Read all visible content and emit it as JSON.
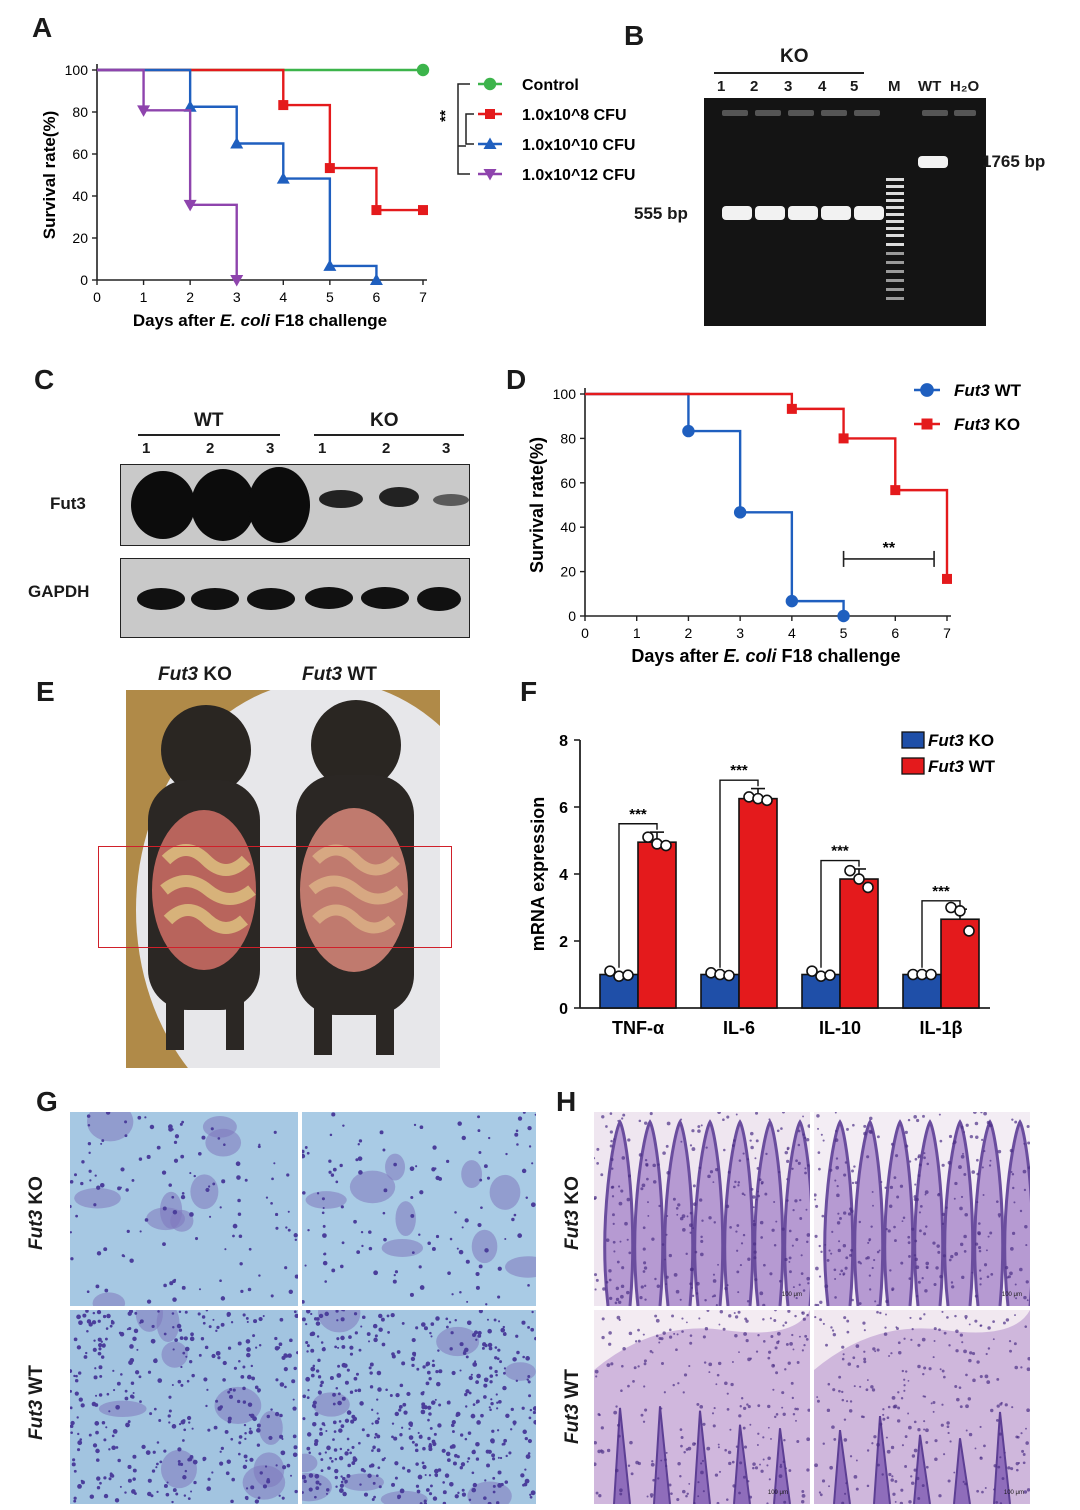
{
  "panels": {
    "a": {
      "letter": "A",
      "chart_data": {
        "type": "line",
        "xlabel_pre": "Days after ",
        "xlabel_italic": "E. coli",
        "xlabel_post": " F18 challenge",
        "ylabel": "Survival rate(%)",
        "xlim": [
          0,
          7
        ],
        "ylim": [
          0,
          100
        ],
        "xticks": [
          "0",
          "1",
          "2",
          "3",
          "4",
          "5",
          "6",
          "7"
        ],
        "yticks": [
          "0",
          "20",
          "40",
          "60",
          "80",
          "100"
        ],
        "significance": "**",
        "series": [
          {
            "name": "Control",
            "color": "#3cb44b",
            "marker": "circle",
            "x": [
              0,
              7
            ],
            "y": [
              100,
              100
            ],
            "points_x": [
              7
            ],
            "points_y": [
              100
            ]
          },
          {
            "name": "1.0x10^8 CFU",
            "color": "#e41a1c",
            "marker": "square",
            "x": [
              0,
              4,
              5,
              6,
              7
            ],
            "y": [
              100,
              83.3,
              53.3,
              33.3,
              33.3
            ],
            "points_x": [
              4,
              5,
              6,
              7
            ],
            "points_y": [
              83.3,
              53.3,
              33.3,
              33.3
            ]
          },
          {
            "name": "1.0x10^10 CFU",
            "color": "#1f5fbf",
            "marker": "triangle-up",
            "x": [
              0,
              2,
              3,
              4,
              5,
              6
            ],
            "y": [
              100,
              82.5,
              65,
              48.3,
              6.7,
              0
            ],
            "points_x": [
              2,
              3,
              4,
              5,
              6
            ],
            "points_y": [
              82.5,
              65,
              48.3,
              6.7,
              0
            ]
          },
          {
            "name": "1.0x10^12 CFU",
            "color": "#8e44ad",
            "marker": "triangle-down",
            "x": [
              0,
              1,
              2,
              3
            ],
            "y": [
              100,
              80.8,
              35.8,
              0
            ],
            "points_x": [
              1,
              2,
              3
            ],
            "points_y": [
              80.8,
              35.8,
              0
            ]
          }
        ]
      }
    },
    "b": {
      "letter": "B",
      "ko_label": "KO",
      "lanes": [
        "1",
        "2",
        "3",
        "4",
        "5",
        "M",
        "WT",
        "H₂O"
      ],
      "band_555": "555 bp",
      "band_1765": "1765 bp"
    },
    "c": {
      "letter": "C",
      "group_wt": "WT",
      "group_ko": "KO",
      "lanes": [
        "1",
        "2",
        "3",
        "1",
        "2",
        "3"
      ],
      "row1_label": "Fut3",
      "row2_label": "GAPDH"
    },
    "d": {
      "letter": "D",
      "chart_data": {
        "type": "line",
        "xlabel_pre": "Days after ",
        "xlabel_italic": "E. coli",
        "xlabel_post": " F18 challenge",
        "ylabel": "Survival rate(%)",
        "xlim": [
          0,
          7
        ],
        "ylim": [
          0,
          100
        ],
        "xticks": [
          "0",
          "1",
          "2",
          "3",
          "4",
          "5",
          "6",
          "7"
        ],
        "yticks": [
          "0",
          "20",
          "40",
          "60",
          "80",
          "100"
        ],
        "significance": "**",
        "series": [
          {
            "name_italic": "Fut3",
            "name_rest": " WT",
            "color": "#1f5fbf",
            "marker": "circle",
            "x": [
              0,
              2,
              3,
              4,
              5
            ],
            "y": [
              100,
              83.3,
              46.7,
              6.7,
              0
            ],
            "points_x": [
              2,
              3,
              4,
              5
            ],
            "points_y": [
              83.3,
              46.7,
              6.7,
              0
            ]
          },
          {
            "name_italic": "Fut3",
            "name_rest": " KO",
            "color": "#e41a1c",
            "marker": "square",
            "x": [
              0,
              4,
              5,
              6,
              7
            ],
            "y": [
              100,
              93.3,
              80,
              56.7,
              16.7
            ],
            "points_x": [
              4,
              5,
              6,
              7
            ],
            "points_y": [
              93.3,
              80,
              56.7,
              16.7
            ]
          }
        ]
      }
    },
    "e": {
      "letter": "E",
      "label_ko_italic": "Fut3",
      "label_ko_rest": " KO",
      "label_wt_italic": "Fut3",
      "label_wt_rest": " WT"
    },
    "f": {
      "letter": "F",
      "chart_data": {
        "type": "bar",
        "ylabel": "mRNA expression",
        "ylim": [
          0,
          8
        ],
        "yticks": [
          "0",
          "2",
          "4",
          "6",
          "8"
        ],
        "categories": [
          "TNF-α",
          "IL-6",
          "IL-10",
          "IL-1β"
        ],
        "significance": [
          "***",
          "***",
          "***",
          "***"
        ],
        "series": [
          {
            "name_italic": "Fut3",
            "name_rest": " KO",
            "color": "#1f4fa8",
            "values": [
              1.0,
              1.0,
              1.0,
              1.0
            ],
            "points": [
              [
                1.1,
                0.95,
                0.98
              ],
              [
                1.05,
                1.0,
                0.97
              ],
              [
                1.1,
                0.95,
                0.98
              ],
              [
                1.0,
                1.0,
                1.0
              ]
            ]
          },
          {
            "name_italic": "Fut3",
            "name_rest": " WT",
            "color": "#e41a1c",
            "values": [
              4.95,
              6.25,
              3.85,
              2.65
            ],
            "points": [
              [
                5.1,
                4.9,
                4.85
              ],
              [
                6.3,
                6.25,
                6.2
              ],
              [
                4.1,
                3.85,
                3.6
              ],
              [
                3.0,
                2.9,
                2.3
              ]
            ]
          }
        ]
      }
    },
    "g": {
      "letter": "G",
      "row1_italic": "Fut3",
      "row1_rest": " KO",
      "row2_italic": "Fut3",
      "row2_rest": " WT"
    },
    "h": {
      "letter": "H",
      "row1_italic": "Fut3",
      "row1_rest": " KO",
      "row2_italic": "Fut3",
      "row2_rest": " WT",
      "scalebar": "100 μm"
    }
  }
}
